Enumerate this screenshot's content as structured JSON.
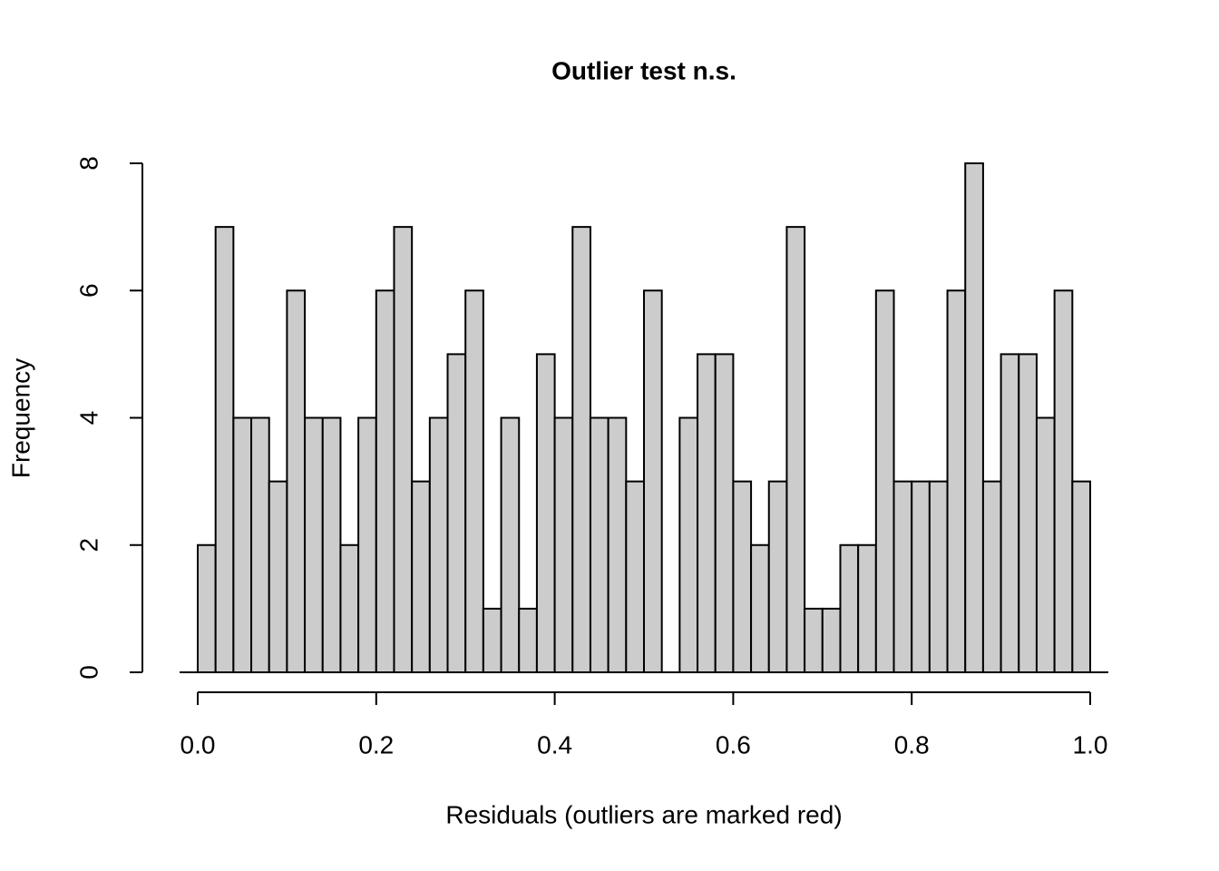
{
  "chart_data": {
    "type": "histogram",
    "title": "Outlier test n.s.",
    "x_label": "Residuals (outliers are marked red)",
    "y_label": "Frequency",
    "bins": [
      0,
      0.02,
      0.04,
      0.06,
      0.08,
      0.1,
      0.12,
      0.14,
      0.16,
      0.18,
      0.2,
      0.22,
      0.24,
      0.26,
      0.28,
      0.3,
      0.32,
      0.34,
      0.36,
      0.38,
      0.4,
      0.42,
      0.44,
      0.46,
      0.48,
      0.5,
      0.52,
      0.54,
      0.56,
      0.58,
      0.6,
      0.62,
      0.64,
      0.66,
      0.68,
      0.7,
      0.72,
      0.74,
      0.76,
      0.78,
      0.8,
      0.82,
      0.84,
      0.86,
      0.88,
      0.9,
      0.92,
      0.94,
      0.96,
      0.98,
      1
    ],
    "values": [
      2,
      7,
      4,
      4,
      3,
      6,
      4,
      4,
      2,
      4,
      6,
      7,
      3,
      4,
      5,
      6,
      1,
      4,
      1,
      5,
      4,
      7,
      4,
      4,
      3,
      6,
      0,
      4,
      5,
      5,
      3,
      2,
      3,
      7,
      1,
      1,
      2,
      2,
      6,
      3,
      3,
      3,
      6,
      8,
      3,
      5,
      5,
      4,
      6,
      3
    ],
    "color": "#cccccc",
    "xlim": [
      0,
      1
    ],
    "xticks": [
      {
        "value": 0,
        "label": "0.0"
      },
      {
        "value": 0.2,
        "label": "0.2"
      },
      {
        "value": 0.4,
        "label": "0.4"
      },
      {
        "value": 0.6,
        "label": "0.6"
      },
      {
        "value": 0.8,
        "label": "0.8"
      },
      {
        "value": 1,
        "label": "1.0"
      }
    ],
    "ylim": [
      0,
      8
    ],
    "yticks": [
      0,
      2,
      4,
      6,
      8
    ]
  }
}
